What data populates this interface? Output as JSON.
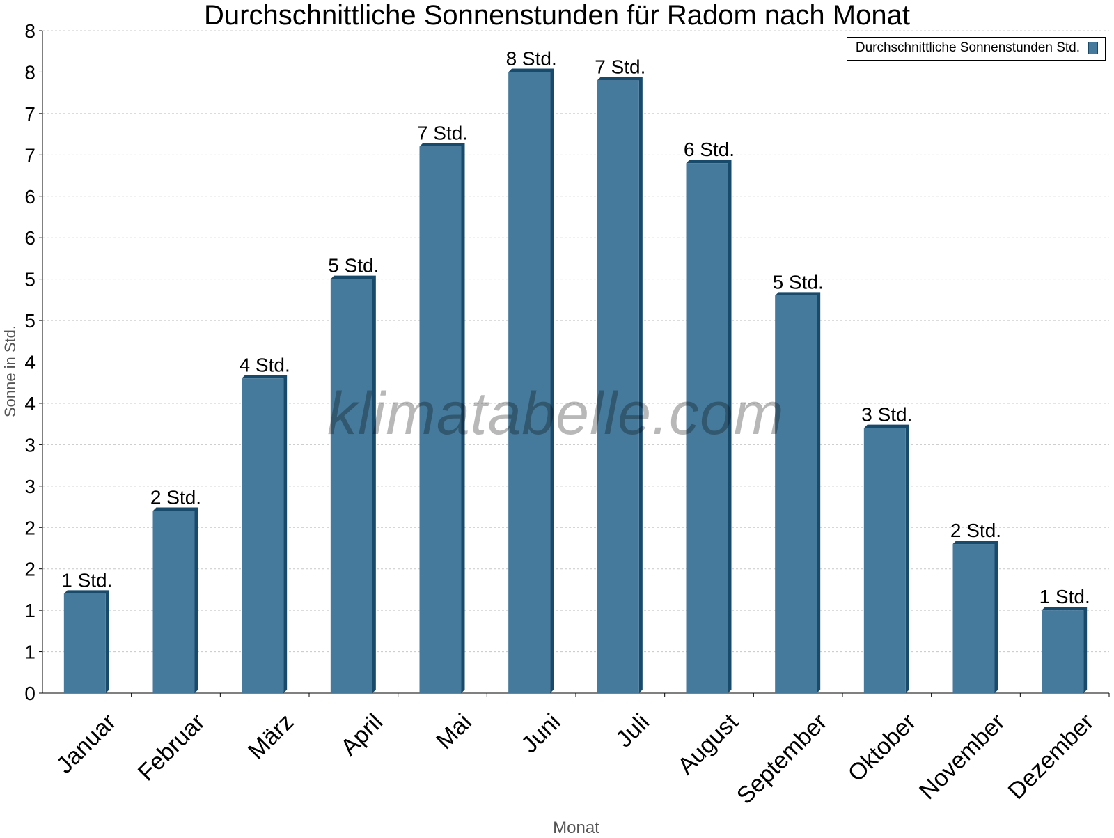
{
  "chart_data": {
    "type": "bar",
    "title": "Durchschnittliche Sonnenstunden für Radom nach Monat",
    "xlabel": "Monat",
    "ylabel": "Sonne in Std.",
    "ylim": [
      0,
      8
    ],
    "ytick_labels": [
      "0",
      "1",
      "1",
      "2",
      "2",
      "3",
      "3",
      "4",
      "4",
      "5",
      "5",
      "6",
      "6",
      "7",
      "7",
      "8",
      "8"
    ],
    "grid": true,
    "legend_position": "top-right",
    "watermark": "klimatabelle.com",
    "categories": [
      "Januar",
      "Februar",
      "März",
      "April",
      "Mai",
      "Juni",
      "Juli",
      "August",
      "September",
      "Oktober",
      "November",
      "Dezember"
    ],
    "series": [
      {
        "name": "Durchschnittliche Sonnenstunden Std.",
        "color": "#467a9c",
        "values": [
          1.2,
          2.2,
          3.8,
          5.0,
          6.6,
          7.5,
          7.4,
          6.4,
          4.8,
          3.2,
          1.8,
          1.0
        ]
      }
    ],
    "data_labels": [
      "1 Std.",
      "2 Std.",
      "4 Std.",
      "5 Std.",
      "7 Std.",
      "8 Std.",
      "7 Std.",
      "6 Std.",
      "5 Std.",
      "3 Std.",
      "2 Std.",
      "1 Std."
    ]
  }
}
